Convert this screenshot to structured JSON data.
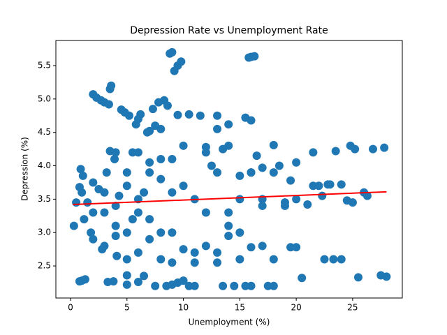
{
  "chart_data": {
    "type": "scatter",
    "title": "Depression Rate vs Unemployment Rate",
    "x_label": "Unemployment (%)",
    "y_label": "Depression (%)",
    "xlim": [
      -1.3,
      29.4
    ],
    "ylim": [
      2.02,
      5.876
    ],
    "xticks": [
      0,
      5,
      10,
      15,
      20,
      25
    ],
    "yticks": [
      2.5,
      {
        "value": 3,
        "label": "3.0"
      },
      3.5,
      {
        "value": 4,
        "label": "4.0"
      },
      4.5,
      {
        "value": 5,
        "label": "5.0"
      },
      5.5
    ],
    "color": "#1f77b4",
    "x": [
      0.3,
      0.5,
      0.8,
      0.8,
      1.0,
      1.3,
      0.9,
      1.1,
      1.2,
      1.5,
      1.8,
      2.0,
      2.3,
      2.7,
      3.0,
      3.4,
      3.5,
      3.6,
      3.3,
      3.8,
      2.5,
      2.8,
      3.0,
      3.2,
      3.5,
      3.9,
      4.1,
      4.3,
      4.5,
      4.8,
      5.0,
      5.0,
      5.2,
      5.5,
      5.8,
      6.0,
      6.2,
      6.5,
      6.0,
      6.8,
      7.0,
      7.3,
      7.5,
      7.8,
      8.0,
      8.3,
      8.6,
      8.8,
      9.0,
      9.2,
      9.5,
      9.8,
      7.5,
      8.5,
      9.0,
      9.5,
      10.0,
      10.5,
      11.0,
      9.5,
      10.5,
      11.5,
      12.0,
      12.5,
      13.0,
      13.0,
      13.5,
      14.0,
      14.0,
      14.5,
      13.5,
      15.5,
      16.0,
      15.8,
      16.0,
      16.3,
      15.0,
      15.5,
      16.0,
      16.5,
      17.0,
      17.5,
      18.0,
      18.0,
      18.5,
      19.0,
      19.5,
      19.5,
      20.0,
      20.0,
      20.5,
      21.0,
      21.5,
      21.5,
      22.0,
      22.3,
      22.5,
      22.8,
      23.0,
      23.3,
      23.5,
      24.0,
      24.0,
      24.5,
      24.8,
      25.0,
      25.2,
      25.5,
      26.0,
      26.3,
      26.8,
      27.5,
      27.8,
      28.0,
      1,
      2,
      3,
      4,
      5,
      6,
      7,
      8,
      9,
      10,
      11,
      12,
      13,
      14,
      15,
      16,
      17,
      18,
      2,
      3,
      4,
      5,
      6,
      7,
      8,
      9,
      10,
      11,
      12,
      13,
      14,
      15,
      16,
      17,
      18,
      19,
      20,
      2,
      4,
      6,
      8,
      10,
      12,
      14,
      16,
      4,
      5,
      6,
      7,
      8,
      9,
      5,
      7,
      9,
      11,
      13,
      15,
      17,
      5.5,
      6.5
    ],
    "y": [
      3.1,
      3.45,
      3.68,
      2.27,
      2.28,
      2.3,
      3.95,
      3.85,
      3.2,
      3.45,
      3.0,
      5.07,
      5.02,
      4.98,
      4.95,
      4.92,
      5.15,
      5.2,
      2.26,
      2.27,
      3.65,
      2.75,
      3.3,
      3.9,
      4.22,
      4.1,
      2.65,
      3.55,
      4.84,
      4.8,
      2.36,
      2.22,
      4.75,
      3.2,
      4.62,
      4.7,
      4.77,
      2.35,
      2.26,
      4.5,
      4.52,
      4.85,
      4.6,
      4.95,
      4.55,
      4.98,
      4.9,
      5.68,
      5.7,
      5.42,
      5.5,
      5.56,
      2.2,
      2.2,
      2.22,
      2.25,
      2.28,
      2.2,
      2.2,
      4.76,
      4.77,
      4.75,
      4.28,
      4.0,
      4.75,
      4.55,
      4.25,
      4.62,
      3.1,
      2.2,
      2.2,
      4.72,
      4.68,
      5.62,
      5.63,
      5.64,
      3.85,
      2.2,
      2.2,
      4.15,
      3.97,
      2.2,
      2.2,
      4.31,
      4.0,
      3.4,
      3.78,
      2.78,
      4.05,
      2.78,
      2.32,
      3.42,
      4.2,
      3.7,
      3.7,
      3.55,
      2.6,
      3.72,
      3.72,
      2.6,
      4.22,
      2.6,
      3.72,
      3.48,
      4.3,
      3.45,
      4.25,
      2.33,
      3.6,
      3.55,
      4.25,
      2.36,
      4.27,
      2.34,
      3.6,
      3.3,
      3.6,
      3.4,
      3.7,
      3.5,
      3.9,
      4.1,
      3.6,
      3.7,
      3.5,
      3.3,
      3.9,
      3.3,
      3.5,
      3.9,
      3.5,
      3.9,
      2.9,
      2.8,
      3.1,
      2.6,
      2.7,
      2.9,
      2.6,
      3.0,
      2.75,
      2.7,
      2.8,
      2.7,
      2.95,
      2.6,
      2.78,
      2.8,
      2.6,
      3.45,
      3.5,
      3.75,
      4.2,
      4.2,
      3.8,
      4.3,
      4.2,
      4.3,
      3.9,
      2.95,
      3.0,
      3.3,
      3.2,
      3.0,
      4.1,
      3.9,
      4.05,
      2.55,
      2.55,
      2.55,
      3.0,
      3.4,
      4.2,
      3.6
    ],
    "fit": {
      "x": [
        0.2,
        28
      ],
      "y": [
        3.42,
        3.61
      ],
      "color": "red"
    }
  }
}
